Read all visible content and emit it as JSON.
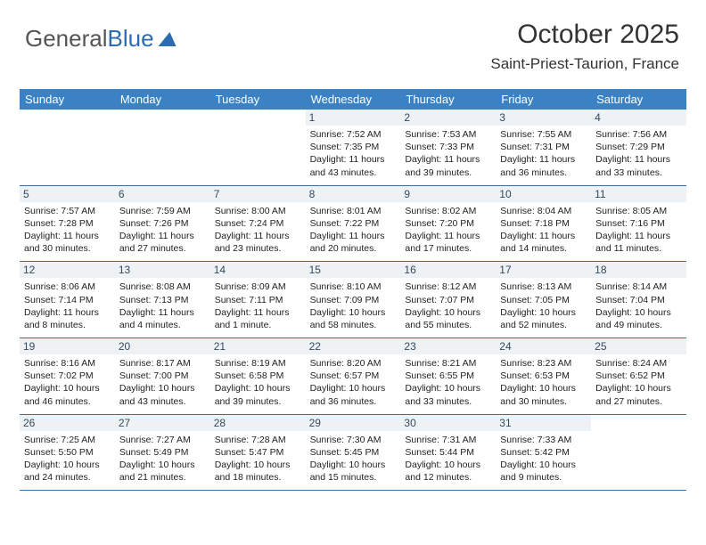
{
  "logo": {
    "part1": "General",
    "part2": "Blue"
  },
  "title": "October 2025",
  "location": "Saint-Priest-Taurion, France",
  "colors": {
    "header_bg": "#3b82c4",
    "header_text": "#ffffff",
    "daynum_bg": "#eef2f5",
    "daynum_text": "#34495e",
    "border": "#3b6ea0",
    "text": "#222222"
  },
  "day_labels": [
    "Sunday",
    "Monday",
    "Tuesday",
    "Wednesday",
    "Thursday",
    "Friday",
    "Saturday"
  ],
  "weeks": [
    [
      null,
      null,
      null,
      {
        "d": "1",
        "sr": "7:52 AM",
        "ss": "7:35 PM",
        "dl": "11 hours and 43 minutes."
      },
      {
        "d": "2",
        "sr": "7:53 AM",
        "ss": "7:33 PM",
        "dl": "11 hours and 39 minutes."
      },
      {
        "d": "3",
        "sr": "7:55 AM",
        "ss": "7:31 PM",
        "dl": "11 hours and 36 minutes."
      },
      {
        "d": "4",
        "sr": "7:56 AM",
        "ss": "7:29 PM",
        "dl": "11 hours and 33 minutes."
      }
    ],
    [
      {
        "d": "5",
        "sr": "7:57 AM",
        "ss": "7:28 PM",
        "dl": "11 hours and 30 minutes."
      },
      {
        "d": "6",
        "sr": "7:59 AM",
        "ss": "7:26 PM",
        "dl": "11 hours and 27 minutes."
      },
      {
        "d": "7",
        "sr": "8:00 AM",
        "ss": "7:24 PM",
        "dl": "11 hours and 23 minutes."
      },
      {
        "d": "8",
        "sr": "8:01 AM",
        "ss": "7:22 PM",
        "dl": "11 hours and 20 minutes."
      },
      {
        "d": "9",
        "sr": "8:02 AM",
        "ss": "7:20 PM",
        "dl": "11 hours and 17 minutes."
      },
      {
        "d": "10",
        "sr": "8:04 AM",
        "ss": "7:18 PM",
        "dl": "11 hours and 14 minutes."
      },
      {
        "d": "11",
        "sr": "8:05 AM",
        "ss": "7:16 PM",
        "dl": "11 hours and 11 minutes."
      }
    ],
    [
      {
        "d": "12",
        "sr": "8:06 AM",
        "ss": "7:14 PM",
        "dl": "11 hours and 8 minutes."
      },
      {
        "d": "13",
        "sr": "8:08 AM",
        "ss": "7:13 PM",
        "dl": "11 hours and 4 minutes."
      },
      {
        "d": "14",
        "sr": "8:09 AM",
        "ss": "7:11 PM",
        "dl": "11 hours and 1 minute."
      },
      {
        "d": "15",
        "sr": "8:10 AM",
        "ss": "7:09 PM",
        "dl": "10 hours and 58 minutes."
      },
      {
        "d": "16",
        "sr": "8:12 AM",
        "ss": "7:07 PM",
        "dl": "10 hours and 55 minutes."
      },
      {
        "d": "17",
        "sr": "8:13 AM",
        "ss": "7:05 PM",
        "dl": "10 hours and 52 minutes."
      },
      {
        "d": "18",
        "sr": "8:14 AM",
        "ss": "7:04 PM",
        "dl": "10 hours and 49 minutes."
      }
    ],
    [
      {
        "d": "19",
        "sr": "8:16 AM",
        "ss": "7:02 PM",
        "dl": "10 hours and 46 minutes."
      },
      {
        "d": "20",
        "sr": "8:17 AM",
        "ss": "7:00 PM",
        "dl": "10 hours and 43 minutes."
      },
      {
        "d": "21",
        "sr": "8:19 AM",
        "ss": "6:58 PM",
        "dl": "10 hours and 39 minutes."
      },
      {
        "d": "22",
        "sr": "8:20 AM",
        "ss": "6:57 PM",
        "dl": "10 hours and 36 minutes."
      },
      {
        "d": "23",
        "sr": "8:21 AM",
        "ss": "6:55 PM",
        "dl": "10 hours and 33 minutes."
      },
      {
        "d": "24",
        "sr": "8:23 AM",
        "ss": "6:53 PM",
        "dl": "10 hours and 30 minutes."
      },
      {
        "d": "25",
        "sr": "8:24 AM",
        "ss": "6:52 PM",
        "dl": "10 hours and 27 minutes."
      }
    ],
    [
      {
        "d": "26",
        "sr": "7:25 AM",
        "ss": "5:50 PM",
        "dl": "10 hours and 24 minutes."
      },
      {
        "d": "27",
        "sr": "7:27 AM",
        "ss": "5:49 PM",
        "dl": "10 hours and 21 minutes."
      },
      {
        "d": "28",
        "sr": "7:28 AM",
        "ss": "5:47 PM",
        "dl": "10 hours and 18 minutes."
      },
      {
        "d": "29",
        "sr": "7:30 AM",
        "ss": "5:45 PM",
        "dl": "10 hours and 15 minutes."
      },
      {
        "d": "30",
        "sr": "7:31 AM",
        "ss": "5:44 PM",
        "dl": "10 hours and 12 minutes."
      },
      {
        "d": "31",
        "sr": "7:33 AM",
        "ss": "5:42 PM",
        "dl": "10 hours and 9 minutes."
      },
      null
    ]
  ],
  "labels": {
    "sunrise": "Sunrise:",
    "sunset": "Sunset:",
    "daylight": "Daylight:"
  }
}
